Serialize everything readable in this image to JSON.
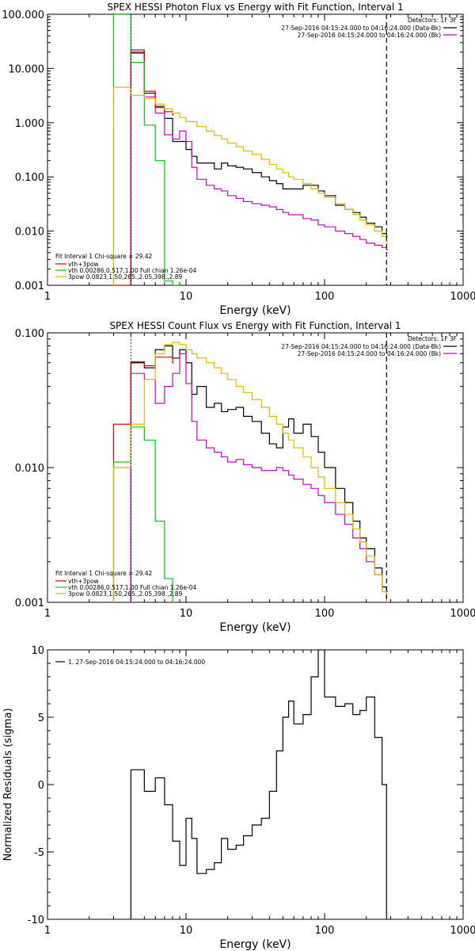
{
  "chart_data": [
    {
      "type": "line",
      "title": "SPEX HESSI Photon Flux vs Energy with Fit Function, Interval 1",
      "xlabel": "Energy (keV)",
      "ylabel": "",
      "xscale": "log",
      "yscale": "log",
      "xlim": [
        1,
        1000
      ],
      "ylim": [
        0.001,
        100
      ],
      "xticks": [
        1,
        10,
        100,
        1000
      ],
      "xtick_labels": [
        "1",
        "10",
        "100",
        "1000"
      ],
      "yticks": [
        0.001,
        0.01,
        0.1,
        1,
        10,
        100
      ],
      "ytick_labels": [
        "0.001",
        "0.010",
        "0.100",
        "1.000",
        "10.000",
        "100.000"
      ],
      "vlines": [
        {
          "x": 4.0,
          "style": "dotted"
        },
        {
          "x": 280,
          "style": "dashed"
        }
      ],
      "legend_top_right": {
        "header": "Detectors: 1F 3F",
        "entries": [
          {
            "text": "27-Sep-2016 04:15:24.000 to 04:16:24.000 (Data-Bk)",
            "color": "#000000"
          },
          {
            "text": "27-Sep-2016 04:15:24.000 to 04:16:24.000 (Bk)",
            "color": "#cc00cc"
          }
        ]
      },
      "legend_bottom_left": {
        "header": "Fit Interval 1    Chi-square = 29.42",
        "entries": [
          {
            "text": "vth+3pow",
            "color": "#dd0000"
          },
          {
            "text": "vth 0.00286,0.517,1.00   Full chian 1.26e-04",
            "color": "#00cc00"
          },
          {
            "text": "3pow 0.0823,1.50,265.,2.05,398.,2.89",
            "color": "#ddbb00"
          }
        ]
      },
      "series": [
        {
          "name": "Data-Bk",
          "color": "#000000",
          "style": "step",
          "x": [
            4.0,
            5.0,
            6.0,
            7.0,
            8.0,
            9.0,
            10.0,
            11.0,
            12.0,
            14.0,
            16.0,
            18.0,
            20.0,
            23.0,
            26.0,
            30.0,
            35.0,
            40.0,
            45.0,
            50.0,
            55.0,
            60.0,
            70.0,
            80.0,
            90.0,
            100.0,
            120.0,
            140.0,
            160.0,
            180.0,
            200.0,
            230.0,
            260.0,
            280.0
          ],
          "y": [
            20.0,
            3.5,
            2.0,
            1.2,
            0.45,
            0.45,
            0.32,
            0.24,
            0.18,
            0.18,
            0.14,
            0.18,
            0.16,
            0.15,
            0.14,
            0.12,
            0.1,
            0.085,
            0.075,
            0.06,
            0.06,
            0.06,
            0.07,
            0.07,
            0.055,
            0.045,
            0.03,
            0.025,
            0.022,
            0.018,
            0.014,
            0.012,
            0.009,
            0.008
          ]
        },
        {
          "name": "Bk",
          "color": "#cc00cc",
          "style": "step",
          "x": [
            4.0,
            5.0,
            6.0,
            7.0,
            8.0,
            9.0,
            10.0,
            11.0,
            12.0,
            14.0,
            16.0,
            18.0,
            20.0,
            23.0,
            26.0,
            30.0,
            35.0,
            40.0,
            45.0,
            50.0,
            55.0,
            60.0,
            70.0,
            80.0,
            90.0,
            100.0,
            120.0,
            140.0,
            160.0,
            180.0,
            200.0,
            230.0,
            260.0,
            280.0
          ],
          "y": [
            19.0,
            3.0,
            1.5,
            0.6,
            0.5,
            0.7,
            0.45,
            0.15,
            0.09,
            0.07,
            0.06,
            0.055,
            0.045,
            0.04,
            0.035,
            0.032,
            0.03,
            0.028,
            0.025,
            0.022,
            0.02,
            0.02,
            0.017,
            0.016,
            0.013,
            0.012,
            0.01,
            0.009,
            0.008,
            0.007,
            0.006,
            0.0055,
            0.005,
            0.0045
          ]
        },
        {
          "name": "vth+3pow",
          "color": "#dd0000",
          "style": "step",
          "x": [
            3.0,
            4.0,
            5.0,
            6.0,
            7.0,
            8.0
          ],
          "y": [
            0.0008,
            22.0,
            3.8,
            1.9,
            1.6,
            1.4
          ]
        },
        {
          "name": "vth",
          "color": "#00cc00",
          "style": "step",
          "x": [
            3.0,
            4.0,
            5.0,
            6.0,
            7.0,
            8.0,
            9.0
          ],
          "y": [
            100,
            13.0,
            0.9,
            0.2,
            0.0012,
            0.0008,
            0.0008
          ]
        },
        {
          "name": "3pow",
          "color": "#ddbb00",
          "style": "step",
          "x": [
            3.0,
            4.0,
            5.0,
            6.0,
            7.0,
            8.0,
            9.0,
            10.0,
            12.0,
            14.0,
            16.0,
            18.0,
            20.0,
            23.0,
            26.0,
            30.0,
            35.0,
            40.0,
            45.0,
            50.0,
            55.0,
            60.0,
            70.0,
            80.0,
            90.0,
            100.0,
            120.0,
            140.0,
            160.0,
            180.0,
            200.0,
            230.0,
            260.0,
            280.0
          ],
          "y": [
            4.5,
            3.2,
            2.8,
            2.2,
            1.8,
            1.5,
            1.25,
            1.05,
            0.85,
            0.7,
            0.58,
            0.5,
            0.42,
            0.36,
            0.3,
            0.26,
            0.21,
            0.17,
            0.14,
            0.12,
            0.1,
            0.09,
            0.075,
            0.06,
            0.05,
            0.042,
            0.032,
            0.025,
            0.02,
            0.016,
            0.013,
            0.01,
            0.008,
            0.006
          ]
        }
      ]
    },
    {
      "type": "line",
      "title": "SPEX HESSI Count Flux vs Energy with Fit Function, Interval 1",
      "xlabel": "Energy (keV)",
      "ylabel": "",
      "xscale": "log",
      "yscale": "log",
      "xlim": [
        1,
        1000
      ],
      "ylim": [
        0.001,
        0.1
      ],
      "xticks": [
        1,
        10,
        100,
        1000
      ],
      "xtick_labels": [
        "1",
        "10",
        "100",
        "1000"
      ],
      "yticks": [
        0.001,
        0.01,
        0.1
      ],
      "ytick_labels": [
        "0.001",
        "0.010",
        "0.100"
      ],
      "vlines": [
        {
          "x": 4.0,
          "style": "dotted"
        },
        {
          "x": 280,
          "style": "dashed"
        }
      ],
      "legend_top_right": {
        "header": "Detectors: 1F 3F",
        "entries": [
          {
            "text": "27-Sep-2016 04:15:24.000 to 04:16:24.000 (Data-Bk)",
            "color": "#000000"
          },
          {
            "text": "27-Sep-2016 04:15:24.000 to 04:16:24.000 (Bk)",
            "color": "#cc00cc"
          }
        ]
      },
      "legend_bottom_left": {
        "header": "Fit Interval 1    Chi-square = 29.42",
        "entries": [
          {
            "text": "vth+3pow",
            "color": "#dd0000"
          },
          {
            "text": "vth 0.00286,0.517,1.00   Full chian 1.26e-04",
            "color": "#00cc00"
          },
          {
            "text": "3pow 0.0823,1.50,265.,2.05,398.,2.89",
            "color": "#ddbb00"
          }
        ]
      },
      "series": [
        {
          "name": "Data-Bk",
          "color": "#000000",
          "style": "step",
          "x": [
            4.0,
            5.0,
            6.0,
            7.0,
            8.0,
            9.0,
            10.0,
            11.0,
            12.0,
            14.0,
            16.0,
            18.0,
            20.0,
            23.0,
            26.0,
            30.0,
            35.0,
            40.0,
            45.0,
            50.0,
            55.0,
            60.0,
            70.0,
            80.0,
            90.0,
            100.0,
            120.0,
            140.0,
            160.0,
            180.0,
            200.0,
            230.0,
            260.0,
            280.0
          ],
          "y": [
            0.06,
            0.055,
            0.075,
            0.08,
            0.065,
            0.075,
            0.06,
            0.035,
            0.04,
            0.028,
            0.03,
            0.026,
            0.027,
            0.028,
            0.024,
            0.022,
            0.018,
            0.015,
            0.014,
            0.02,
            0.023,
            0.018,
            0.021,
            0.017,
            0.013,
            0.01,
            0.007,
            0.0055,
            0.004,
            0.003,
            0.0025,
            0.0018,
            0.0013,
            0.0012
          ]
        },
        {
          "name": "Bk",
          "color": "#cc00cc",
          "style": "step",
          "x": [
            4.0,
            5.0,
            6.0,
            7.0,
            8.0,
            9.0,
            10.0,
            11.0,
            12.0,
            14.0,
            16.0,
            18.0,
            20.0,
            23.0,
            26.0,
            30.0,
            35.0,
            40.0,
            45.0,
            50.0,
            55.0,
            60.0,
            70.0,
            80.0,
            90.0,
            100.0,
            120.0,
            140.0,
            160.0,
            180.0,
            200.0,
            230.0,
            260.0,
            280.0
          ],
          "y": [
            0.05,
            0.045,
            0.03,
            0.04,
            0.05,
            0.07,
            0.042,
            0.022,
            0.016,
            0.014,
            0.013,
            0.012,
            0.011,
            0.0115,
            0.0105,
            0.01,
            0.0095,
            0.0095,
            0.01,
            0.0095,
            0.0088,
            0.0082,
            0.0075,
            0.007,
            0.0062,
            0.0055,
            0.0045,
            0.0038,
            0.003,
            0.0025,
            0.002,
            0.0016,
            0.0012,
            0.001
          ]
        },
        {
          "name": "vth+3pow",
          "color": "#dd0000",
          "style": "step",
          "x": [
            3.0,
            4.0,
            5.0,
            6.0,
            7.0,
            8.0
          ],
          "y": [
            0.021,
            0.061,
            0.057,
            0.066,
            0.066,
            0.06
          ]
        },
        {
          "name": "vth",
          "color": "#00cc00",
          "style": "step",
          "x": [
            3.0,
            4.0,
            5.0,
            6.0,
            7.0,
            8.0
          ],
          "y": [
            0.011,
            0.02,
            0.016,
            0.004,
            0.0015,
            0.0008
          ]
        },
        {
          "name": "3pow",
          "color": "#ddbb00",
          "style": "step",
          "x": [
            3.0,
            4.0,
            5.0,
            6.0,
            7.0,
            8.0,
            9.0,
            10.0,
            11.0,
            12.0,
            14.0,
            16.0,
            18.0,
            20.0,
            23.0,
            26.0,
            30.0,
            35.0,
            40.0,
            45.0,
            50.0,
            55.0,
            60.0,
            70.0,
            80.0,
            90.0,
            100.0,
            120.0,
            140.0,
            160.0,
            180.0,
            200.0,
            230.0,
            260.0,
            280.0
          ],
          "y": [
            0.01,
            0.021,
            0.045,
            0.07,
            0.082,
            0.085,
            0.082,
            0.075,
            0.07,
            0.065,
            0.06,
            0.055,
            0.05,
            0.045,
            0.04,
            0.036,
            0.032,
            0.028,
            0.024,
            0.021,
            0.018,
            0.016,
            0.014,
            0.012,
            0.01,
            0.0085,
            0.007,
            0.0055,
            0.0045,
            0.0035,
            0.0028,
            0.0022,
            0.0016,
            0.0012,
            0.0009
          ]
        }
      ]
    },
    {
      "type": "line",
      "title": "",
      "xlabel": "Energy (keV)",
      "ylabel": "Normalized Residuals (sigma)",
      "xscale": "log",
      "yscale": "linear",
      "xlim": [
        1,
        1000
      ],
      "ylim": [
        -10,
        10
      ],
      "xticks": [
        1,
        10,
        100,
        1000
      ],
      "xtick_labels": [
        "1",
        "10",
        "100",
        "1000"
      ],
      "yticks": [
        -10,
        -5,
        0,
        5,
        10
      ],
      "ytick_labels": [
        "-10",
        "-5",
        "0",
        "5",
        "10"
      ],
      "legend_top_left": {
        "entries": [
          {
            "text": "1. 27-Sep-2016 04:15:24.000 to 04:16:24.000",
            "color": "#000000"
          }
        ]
      },
      "series": [
        {
          "name": "",
          "color": "#000000",
          "style": "step",
          "x": [
            4.0,
            5.0,
            6.0,
            7.0,
            8.0,
            9.0,
            10.0,
            11.0,
            12.0,
            14.0,
            16.0,
            18.0,
            20.0,
            23.0,
            26.0,
            30.0,
            35.0,
            40.0,
            45.0,
            50.0,
            55.0,
            60.0,
            70.0,
            80.0,
            90.0,
            100.0,
            120.0,
            140.0,
            160.0,
            180.0,
            200.0,
            230.0,
            260.0,
            280.0
          ],
          "y": [
            1.1,
            -0.5,
            0.5,
            -1.5,
            -4.2,
            -6.0,
            -2.5,
            -4.0,
            -6.6,
            -6.3,
            -5.8,
            -4.0,
            -4.8,
            -4.5,
            -3.8,
            -3.0,
            -2.5,
            -0.5,
            2.5,
            5.0,
            6.2,
            4.5,
            5.2,
            8.0,
            10.0,
            6.5,
            5.8,
            6.0,
            5.2,
            5.5,
            6.5,
            3.5,
            0.0,
            -10.0
          ]
        }
      ]
    }
  ]
}
